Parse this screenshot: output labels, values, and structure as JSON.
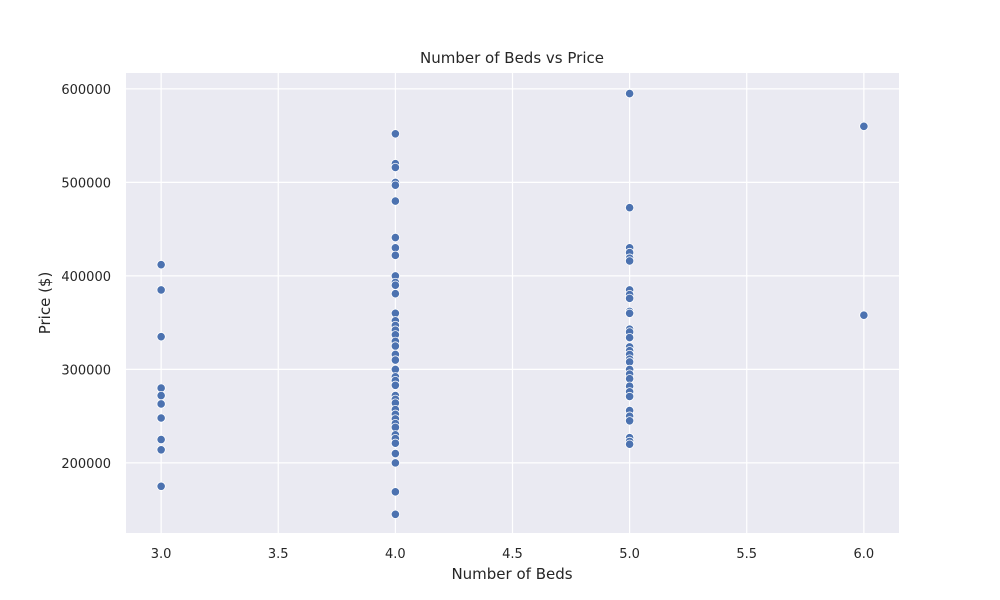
{
  "chart_data": {
    "type": "scatter",
    "title": "Number of Beds vs Price",
    "xlabel": "Number of Beds",
    "ylabel": "Price ($)",
    "xlim": [
      2.85,
      6.15
    ],
    "ylim": [
      125000,
      617000
    ],
    "xticks": [
      3.0,
      3.5,
      4.0,
      4.5,
      5.0,
      5.5,
      6.0
    ],
    "xtick_labels": [
      "3.0",
      "3.5",
      "4.0",
      "4.5",
      "5.0",
      "5.5",
      "6.0"
    ],
    "yticks": [
      200000,
      300000,
      400000,
      500000,
      600000
    ],
    "ytick_labels": [
      "200000",
      "300000",
      "400000",
      "500000",
      "600000"
    ],
    "grid": true,
    "point_color": "#4c72b0",
    "points": [
      {
        "x": 3,
        "y": 412000
      },
      {
        "x": 3,
        "y": 385000
      },
      {
        "x": 3,
        "y": 335000
      },
      {
        "x": 3,
        "y": 280000
      },
      {
        "x": 3,
        "y": 272000
      },
      {
        "x": 3,
        "y": 263000
      },
      {
        "x": 3,
        "y": 248000
      },
      {
        "x": 3,
        "y": 225000
      },
      {
        "x": 3,
        "y": 214000
      },
      {
        "x": 3,
        "y": 175000
      },
      {
        "x": 4,
        "y": 552000
      },
      {
        "x": 4,
        "y": 520000
      },
      {
        "x": 4,
        "y": 516000
      },
      {
        "x": 4,
        "y": 500000
      },
      {
        "x": 4,
        "y": 497000
      },
      {
        "x": 4,
        "y": 480000
      },
      {
        "x": 4,
        "y": 441000
      },
      {
        "x": 4,
        "y": 430000
      },
      {
        "x": 4,
        "y": 422000
      },
      {
        "x": 4,
        "y": 400000
      },
      {
        "x": 4,
        "y": 393000
      },
      {
        "x": 4,
        "y": 390000
      },
      {
        "x": 4,
        "y": 381000
      },
      {
        "x": 4,
        "y": 360000
      },
      {
        "x": 4,
        "y": 352000
      },
      {
        "x": 4,
        "y": 347000
      },
      {
        "x": 4,
        "y": 342000
      },
      {
        "x": 4,
        "y": 337000
      },
      {
        "x": 4,
        "y": 330000
      },
      {
        "x": 4,
        "y": 325000
      },
      {
        "x": 4,
        "y": 316000
      },
      {
        "x": 4,
        "y": 310000
      },
      {
        "x": 4,
        "y": 300000
      },
      {
        "x": 4,
        "y": 292000
      },
      {
        "x": 4,
        "y": 288000
      },
      {
        "x": 4,
        "y": 283000
      },
      {
        "x": 4,
        "y": 272000
      },
      {
        "x": 4,
        "y": 268000
      },
      {
        "x": 4,
        "y": 264000
      },
      {
        "x": 4,
        "y": 257000
      },
      {
        "x": 4,
        "y": 252000
      },
      {
        "x": 4,
        "y": 247000
      },
      {
        "x": 4,
        "y": 242000
      },
      {
        "x": 4,
        "y": 238000
      },
      {
        "x": 4,
        "y": 230000
      },
      {
        "x": 4,
        "y": 226000
      },
      {
        "x": 4,
        "y": 221000
      },
      {
        "x": 4,
        "y": 210000
      },
      {
        "x": 4,
        "y": 200000
      },
      {
        "x": 4,
        "y": 169000
      },
      {
        "x": 4,
        "y": 145000
      },
      {
        "x": 5,
        "y": 595000
      },
      {
        "x": 5,
        "y": 473000
      },
      {
        "x": 5,
        "y": 430000
      },
      {
        "x": 5,
        "y": 425000
      },
      {
        "x": 5,
        "y": 419000
      },
      {
        "x": 5,
        "y": 416000
      },
      {
        "x": 5,
        "y": 385000
      },
      {
        "x": 5,
        "y": 380000
      },
      {
        "x": 5,
        "y": 376000
      },
      {
        "x": 5,
        "y": 362000
      },
      {
        "x": 5,
        "y": 360000
      },
      {
        "x": 5,
        "y": 343000
      },
      {
        "x": 5,
        "y": 340000
      },
      {
        "x": 5,
        "y": 334000
      },
      {
        "x": 5,
        "y": 324000
      },
      {
        "x": 5,
        "y": 320000
      },
      {
        "x": 5,
        "y": 316000
      },
      {
        "x": 5,
        "y": 311000
      },
      {
        "x": 5,
        "y": 308000
      },
      {
        "x": 5,
        "y": 300000
      },
      {
        "x": 5,
        "y": 295000
      },
      {
        "x": 5,
        "y": 290000
      },
      {
        "x": 5,
        "y": 282000
      },
      {
        "x": 5,
        "y": 276000
      },
      {
        "x": 5,
        "y": 271000
      },
      {
        "x": 5,
        "y": 256000
      },
      {
        "x": 5,
        "y": 250000
      },
      {
        "x": 5,
        "y": 245000
      },
      {
        "x": 5,
        "y": 227000
      },
      {
        "x": 5,
        "y": 223000
      },
      {
        "x": 5,
        "y": 220000
      },
      {
        "x": 6,
        "y": 560000
      },
      {
        "x": 6,
        "y": 358000
      }
    ]
  }
}
